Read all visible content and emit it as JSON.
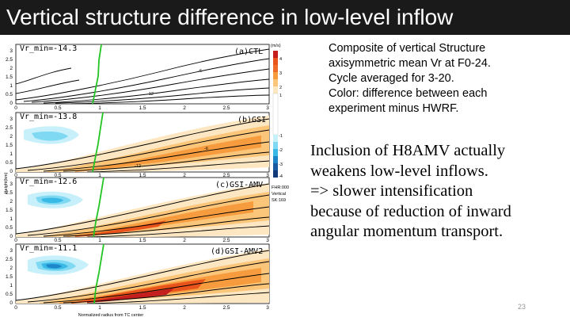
{
  "title": "Vertical structure difference in low-level inflow",
  "figure": {
    "y_axis_label": "Height(km)",
    "x_axis_label": "Normalized radius from TC center",
    "colorbar_unit": "(m/s)",
    "colorbar_ticks": [
      "4",
      "3",
      "2",
      "1",
      "-1",
      "-2",
      "-3",
      "-4"
    ],
    "colorbar_note": [
      "FHR:000",
      "Vertical",
      "SK:169"
    ],
    "y_ticks": [
      "3",
      "2.5",
      "2",
      "1.5",
      "1",
      "0.5",
      "0"
    ],
    "x_ticks": [
      "0",
      "0.5",
      "1",
      "1.5",
      "2",
      "2.5",
      "3"
    ],
    "contour_labels": [
      "-6",
      "-12",
      "-6",
      "-12"
    ],
    "panels": [
      {
        "tag": "(a)CTL",
        "vr_min": "Vr_min=-14.3"
      },
      {
        "tag": "(b)GSI",
        "vr_min": "Vr_min=-13.8"
      },
      {
        "tag": "(c)GSI-AMV",
        "vr_min": "Vr_min=-12.6"
      },
      {
        "tag": "(d)GSI-AMV2",
        "vr_min": "Vr_min=-11.1"
      }
    ],
    "colors": {
      "rmw_line": "#22c422",
      "warm": [
        "#fde7c2",
        "#fbc57a",
        "#f79c3e",
        "#e9541c",
        "#c41e1e"
      ],
      "cool": [
        "#c7f0fb",
        "#7fd9f2",
        "#39b9e6",
        "#1d86c8"
      ]
    }
  },
  "caption": [
    "Composite of vertical Structure",
    "axisymmetric mean Vr at F0-24.",
    "Cycle averaged for 3-20.",
    "Color: difference between each",
    "experiment minus HWRF."
  ],
  "notes": [
    "Inclusion of H8AMV actually",
    "weakens low-level inflows.",
    "=> slower intensification",
    "because of reduction of inward",
    "angular momentum transport."
  ],
  "page_number": "23"
}
